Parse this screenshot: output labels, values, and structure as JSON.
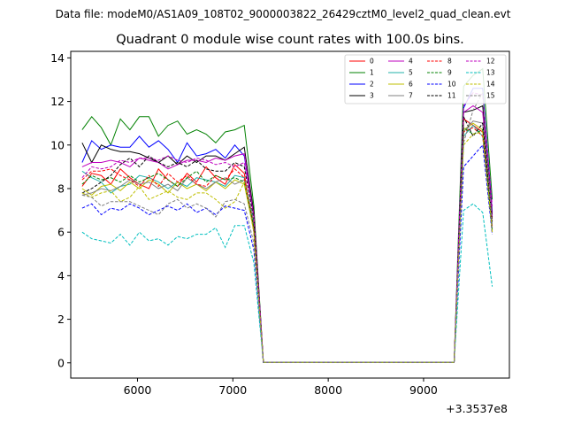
{
  "chart_data": {
    "type": "line",
    "suptitle": "Data file: modeM0/AS1A09_108T02_9000003822_26429cztM0_level2_quad_clean.evt",
    "title": "Quadrant 0 module wise count rates with 100.0s bins.",
    "offset_label": "+3.3537e8",
    "xlim": [
      5300,
      9900
    ],
    "ylim": [
      -0.7,
      14.3
    ],
    "xticks": [
      6000,
      7000,
      8000,
      9000
    ],
    "yticks": [
      0,
      2,
      4,
      6,
      8,
      10,
      12,
      14
    ],
    "grid": false,
    "legend_position": "top-right",
    "x": [
      5420,
      5520,
      5620,
      5720,
      5820,
      5920,
      6020,
      6120,
      6220,
      6320,
      6420,
      6520,
      6620,
      6720,
      6820,
      6920,
      7020,
      7120,
      7220,
      7320,
      9320,
      9420,
      9520,
      9620,
      9720
    ],
    "series": [
      {
        "name": "0",
        "color": "#ff0000",
        "dash": "solid",
        "values": [
          8.1,
          8.7,
          8.6,
          8.2,
          8.9,
          8.5,
          8.2,
          8.0,
          8.9,
          8.4,
          8.1,
          8.7,
          8.3,
          9.0,
          8.5,
          8.2,
          9.1,
          8.7,
          6.0,
          0.02,
          0.02,
          11.2,
          10.9,
          10.6,
          6.6
        ]
      },
      {
        "name": "1",
        "color": "#008000",
        "dash": "solid",
        "values": [
          10.7,
          11.3,
          10.8,
          10.0,
          11.2,
          10.7,
          11.3,
          11.3,
          10.4,
          10.9,
          11.1,
          10.5,
          10.7,
          10.5,
          10.1,
          10.6,
          10.7,
          10.9,
          7.2,
          0.02,
          0.02,
          12.7,
          13.2,
          13.5,
          7.5
        ]
      },
      {
        "name": "2",
        "color": "#0000ff",
        "dash": "solid",
        "values": [
          9.2,
          10.2,
          9.8,
          10.0,
          9.9,
          9.9,
          10.4,
          9.9,
          10.2,
          9.8,
          9.2,
          10.1,
          9.5,
          9.6,
          9.8,
          9.4,
          10.0,
          9.5,
          6.7,
          0.02,
          0.02,
          11.7,
          12.6,
          12.6,
          6.9
        ]
      },
      {
        "name": "3",
        "color": "#000000",
        "dash": "solid",
        "values": [
          10.1,
          9.2,
          10.0,
          9.8,
          9.7,
          9.7,
          9.6,
          9.4,
          9.2,
          9.5,
          9.1,
          9.5,
          9.2,
          9.5,
          9.5,
          9.3,
          9.6,
          9.9,
          6.9,
          0.02,
          0.02,
          11.5,
          11.6,
          11.8,
          6.8
        ]
      },
      {
        "name": "4",
        "color": "#bf00bf",
        "dash": "solid",
        "values": [
          9.0,
          9.2,
          9.2,
          9.3,
          9.2,
          9.0,
          9.4,
          9.3,
          9.2,
          8.9,
          9.1,
          9.3,
          9.3,
          9.2,
          9.4,
          9.3,
          9.5,
          9.6,
          6.7,
          0.02,
          0.02,
          11.5,
          11.8,
          11.5,
          6.7
        ]
      },
      {
        "name": "5",
        "color": "#20b2aa",
        "dash": "solid",
        "values": [
          8.8,
          8.5,
          8.3,
          7.8,
          8.1,
          8.2,
          8.6,
          8.5,
          8.3,
          8.0,
          8.3,
          8.1,
          8.5,
          8.4,
          8.3,
          8.1,
          8.6,
          8.5,
          6.4,
          0.02,
          0.02,
          10.4,
          10.9,
          10.4,
          6.4
        ]
      },
      {
        "name": "6",
        "color": "#bfbf00",
        "dash": "solid",
        "values": [
          8.0,
          7.7,
          8.1,
          8.2,
          7.9,
          8.3,
          8.0,
          8.4,
          8.2,
          7.8,
          8.3,
          8.0,
          8.2,
          7.9,
          8.3,
          8.0,
          8.4,
          8.2,
          6.1,
          0.02,
          0.02,
          10.7,
          11.0,
          10.7,
          6.0
        ]
      },
      {
        "name": "7",
        "color": "#808080",
        "dash": "solid",
        "values": [
          7.7,
          7.8,
          8.0,
          7.9,
          8.1,
          8.4,
          8.2,
          8.3,
          8.0,
          8.2,
          7.9,
          8.5,
          8.2,
          8.0,
          8.3,
          8.5,
          8.2,
          8.4,
          6.2,
          0.02,
          0.02,
          10.6,
          11.1,
          11.0,
          6.2
        ]
      },
      {
        "name": "8",
        "color": "#ff0000",
        "dash": "dashed",
        "values": [
          8.4,
          8.8,
          8.8,
          8.9,
          8.6,
          8.4,
          8.1,
          8.6,
          8.1,
          8.7,
          8.3,
          8.6,
          8.2,
          8.1,
          8.6,
          8.4,
          8.9,
          8.5,
          6.3,
          0.02,
          0.02,
          10.6,
          10.8,
          10.4,
          6.3
        ]
      },
      {
        "name": "9",
        "color": "#008000",
        "dash": "dashed",
        "values": [
          8.2,
          8.6,
          8.4,
          8.5,
          8.3,
          8.6,
          8.3,
          8.5,
          8.7,
          8.4,
          8.1,
          8.5,
          8.8,
          8.3,
          8.6,
          8.4,
          8.5,
          8.3,
          6.2,
          0.02,
          0.02,
          10.8,
          10.5,
          10.7,
          6.1
        ]
      },
      {
        "name": "10",
        "color": "#0000ff",
        "dash": "dashed",
        "values": [
          7.1,
          7.3,
          6.8,
          7.1,
          7.0,
          7.3,
          7.1,
          6.8,
          7.0,
          7.2,
          7.0,
          7.3,
          6.9,
          7.1,
          6.8,
          7.2,
          7.1,
          7.0,
          5.2,
          0.02,
          0.02,
          9.0,
          9.5,
          10.0,
          5.9
        ]
      },
      {
        "name": "11",
        "color": "#000000",
        "dash": "dashed",
        "values": [
          7.8,
          8.0,
          8.3,
          8.6,
          9.1,
          9.4,
          9.0,
          9.5,
          9.2,
          9.0,
          9.2,
          9.0,
          9.3,
          8.9,
          8.8,
          8.8,
          9.2,
          9.0,
          6.6,
          0.02,
          0.02,
          11.3,
          10.4,
          11.0,
          6.5
        ]
      },
      {
        "name": "12",
        "color": "#bf00bf",
        "dash": "dashed",
        "values": [
          8.5,
          9.0,
          8.9,
          9.0,
          9.3,
          9.2,
          9.4,
          9.4,
          9.3,
          9.5,
          9.3,
          9.2,
          9.4,
          9.3,
          9.1,
          9.2,
          9.0,
          9.2,
          6.8,
          0.02,
          0.02,
          11.8,
          12.4,
          12.3,
          7.2
        ]
      },
      {
        "name": "13",
        "color": "#00bfbf",
        "dash": "dashed",
        "values": [
          6.0,
          5.7,
          5.6,
          5.5,
          5.9,
          5.4,
          6.0,
          5.6,
          5.7,
          5.4,
          5.8,
          5.7,
          5.9,
          5.9,
          6.2,
          5.3,
          6.3,
          6.3,
          4.6,
          0.02,
          0.02,
          7.0,
          7.3,
          6.9,
          3.5
        ]
      },
      {
        "name": "14",
        "color": "#bfbf00",
        "dash": "dashed",
        "values": [
          7.8,
          7.6,
          7.8,
          7.9,
          7.4,
          7.6,
          8.1,
          7.5,
          7.7,
          7.9,
          7.6,
          7.5,
          7.8,
          7.8,
          7.5,
          7.1,
          7.4,
          8.3,
          6.0,
          0.02,
          0.02,
          10.0,
          10.5,
          10.6,
          6.0
        ]
      },
      {
        "name": "15",
        "color": "#808080",
        "dash": "dashed",
        "values": [
          7.7,
          7.6,
          7.2,
          7.4,
          7.4,
          7.4,
          7.2,
          7.0,
          6.8,
          7.3,
          7.5,
          7.1,
          7.3,
          7.1,
          6.7,
          7.4,
          7.5,
          7.3,
          5.5,
          0.02,
          0.02,
          10.1,
          11.6,
          12.4,
          6.2
        ]
      }
    ]
  }
}
